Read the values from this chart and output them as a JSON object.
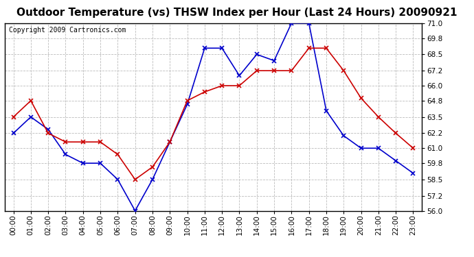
{
  "title": "Outdoor Temperature (vs) THSW Index per Hour (Last 24 Hours) 20090921",
  "copyright": "Copyright 2009 Cartronics.com",
  "hours": [
    0,
    1,
    2,
    3,
    4,
    5,
    6,
    7,
    8,
    9,
    10,
    11,
    12,
    13,
    14,
    15,
    16,
    17,
    18,
    19,
    20,
    21,
    22,
    23
  ],
  "temp_red": [
    63.5,
    64.8,
    62.2,
    61.5,
    61.5,
    61.5,
    60.5,
    58.5,
    59.5,
    61.5,
    64.8,
    65.5,
    66.0,
    66.0,
    67.2,
    67.2,
    67.2,
    69.0,
    69.0,
    67.2,
    65.0,
    63.5,
    62.2,
    61.0
  ],
  "thsw_blue": [
    62.2,
    63.5,
    62.5,
    60.5,
    59.8,
    59.8,
    58.5,
    56.0,
    58.5,
    61.5,
    64.5,
    69.0,
    69.0,
    66.8,
    68.5,
    68.0,
    71.0,
    71.0,
    64.0,
    62.0,
    61.0,
    61.0,
    60.0,
    59.0
  ],
  "ylim": [
    56.0,
    71.0
  ],
  "yticks": [
    56.0,
    57.2,
    58.5,
    59.8,
    61.0,
    62.2,
    63.5,
    64.8,
    66.0,
    67.2,
    68.5,
    69.8,
    71.0
  ],
  "bg_color": "#ffffff",
  "grid_color": "#bbbbbb",
  "red_color": "#cc0000",
  "blue_color": "#0000cc",
  "title_fontsize": 11,
  "copyright_fontsize": 7,
  "tick_fontsize": 7.5
}
